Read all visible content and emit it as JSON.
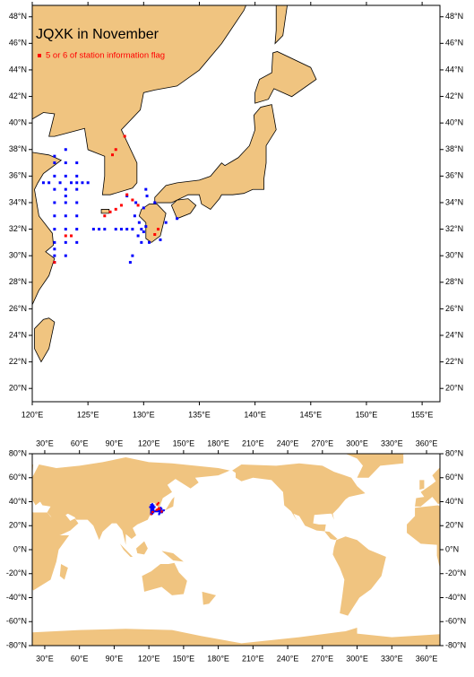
{
  "chart_data": [
    {
      "type": "map",
      "title": "JQXK in November",
      "xlim": [
        120,
        156.6
      ],
      "ylim": [
        19,
        48.86
      ],
      "xticks": [
        {
          "value": 120,
          "label": "120°E"
        },
        {
          "value": 125,
          "label": "125°E"
        },
        {
          "value": 130,
          "label": "130°E"
        },
        {
          "value": 135,
          "label": "135°E"
        },
        {
          "value": 140,
          "label": "140°E"
        },
        {
          "value": 145,
          "label": "145°E"
        },
        {
          "value": 150,
          "label": "150°E"
        },
        {
          "value": 155,
          "label": "155°E"
        }
      ],
      "yticks": [
        {
          "value": 20,
          "label": "20°N"
        },
        {
          "value": 22,
          "label": "22°N"
        },
        {
          "value": 24,
          "label": "24°N"
        },
        {
          "value": 26,
          "label": "26°N"
        },
        {
          "value": 28,
          "label": "28°N"
        },
        {
          "value": 30,
          "label": "30°N"
        },
        {
          "value": 32,
          "label": "32°N"
        },
        {
          "value": 34,
          "label": "34°N"
        },
        {
          "value": 36,
          "label": "36°N"
        },
        {
          "value": 38,
          "label": "38°N"
        },
        {
          "value": 40,
          "label": "40°N"
        },
        {
          "value": 42,
          "label": "42°N"
        },
        {
          "value": 44,
          "label": "44°N"
        },
        {
          "value": 46,
          "label": "46°N"
        },
        {
          "value": 48,
          "label": "48°N"
        }
      ],
      "series": [
        {
          "color": "#0000ff",
          "x": [
            122,
            122,
            122,
            122,
            122,
            122,
            122,
            122,
            122,
            122,
            122,
            123,
            123,
            123,
            123,
            123,
            123,
            123,
            123,
            123,
            123,
            124,
            124,
            124,
            124,
            124,
            124,
            124,
            124,
            121,
            121.5,
            122.5,
            123.5,
            124.5,
            125,
            129.5,
            129.8,
            130,
            129.6,
            130.2,
            129.2,
            129,
            128.5,
            128,
            127.5,
            126.5,
            126,
            125.5,
            130.5,
            129.8,
            129,
            128.8,
            130,
            130.3,
            130.2,
            131,
            129.3,
            128.5,
            132,
            133,
            131.5
          ],
          "y": [
            29.5,
            30,
            30.5,
            31,
            32,
            33,
            34,
            35,
            36,
            37,
            37.5,
            30,
            31,
            32,
            33,
            34,
            34.5,
            35,
            36,
            37,
            38,
            31,
            32,
            33,
            34,
            35,
            35.5,
            36,
            37,
            35.5,
            35.5,
            35.5,
            35.5,
            35.5,
            35.5,
            31.5,
            32,
            31.8,
            32.5,
            32.2,
            33,
            32,
            32,
            32,
            32,
            32,
            32,
            32,
            31,
            31,
            30,
            29.5,
            33.6,
            34.5,
            35,
            34,
            34,
            34.5,
            32.5,
            32.8,
            31.2
          ]
        },
        {
          "name": "5 or 6 of station information flag",
          "color": "#ff0000",
          "x": [
            128.3,
            127.5,
            127.2,
            128,
            127.5,
            127,
            126.5,
            129,
            129.5,
            128.5,
            123.5,
            123,
            122,
            131.3,
            131
          ],
          "y": [
            39,
            38,
            37.6,
            33.8,
            33.5,
            33.3,
            33,
            34.2,
            33.8,
            34.6,
            31.5,
            31.5,
            29.5,
            32,
            31.6
          ]
        }
      ]
    },
    {
      "type": "map",
      "xlim": [
        19.2,
        371.6
      ],
      "ylim": [
        -80,
        80
      ],
      "xticks": [
        {
          "value": 30,
          "label": "30°E"
        },
        {
          "value": 60,
          "label": "60°E"
        },
        {
          "value": 90,
          "label": "90°E"
        },
        {
          "value": 120,
          "label": "120°E"
        },
        {
          "value": 150,
          "label": "150°E"
        },
        {
          "value": 180,
          "label": "180°E"
        },
        {
          "value": 210,
          "label": "210°E"
        },
        {
          "value": 240,
          "label": "240°E"
        },
        {
          "value": 270,
          "label": "270°E"
        },
        {
          "value": 300,
          "label": "300°E"
        },
        {
          "value": 330,
          "label": "330°E"
        },
        {
          "value": 360,
          "label": "360°E"
        }
      ],
      "yticks": [
        {
          "value": -80,
          "label": "-80°N"
        },
        {
          "value": -60,
          "label": "-60°N"
        },
        {
          "value": -40,
          "label": "-40°N"
        },
        {
          "value": -20,
          "label": "-20°N"
        },
        {
          "value": 0,
          "label": "0°N"
        },
        {
          "value": 20,
          "label": "20°N"
        },
        {
          "value": 40,
          "label": "40°N"
        },
        {
          "value": 60,
          "label": "60°N"
        },
        {
          "value": 80,
          "label": "80°N"
        }
      ]
    }
  ]
}
